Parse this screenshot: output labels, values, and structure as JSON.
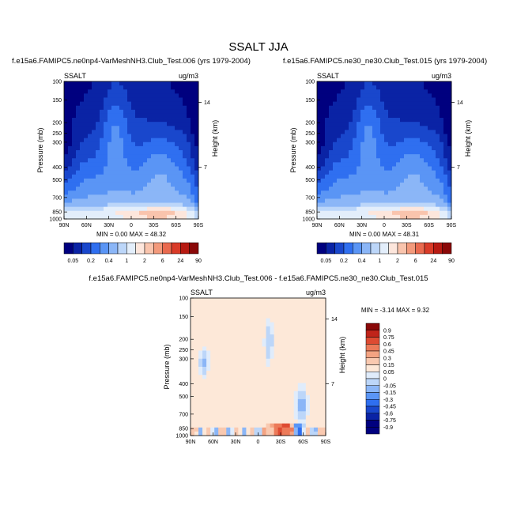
{
  "figure": {
    "title": "SSALT JJA"
  },
  "chart_data": [
    {
      "type": "heatmap",
      "title": "f.e15a6.FAMIPC5.ne0np4-VarMeshNH3.Club_Test.006 (yrs 1979-2004)",
      "left_label": "SSALT",
      "right_label": "ug/m3",
      "xlabel": "",
      "ylabel": "Pressure (mb)",
      "right_axis_label": "Height (km)",
      "x_ticks": [
        "90N",
        "60N",
        "30N",
        "0",
        "30S",
        "60S",
        "90S"
      ],
      "y_ticks": [
        "100",
        "150",
        "200",
        "250",
        "300",
        "400",
        "500",
        "700",
        "850",
        "1000"
      ],
      "right_ticks": [
        "14",
        "7"
      ],
      "stats": "MIN =  0.00  MAX =  48.32",
      "min": 0.0,
      "max": 48.32,
      "colorbar_levels": [
        "0.05",
        "0.2",
        "0.4",
        "1",
        "2",
        "6",
        "24",
        "90"
      ]
    },
    {
      "type": "heatmap",
      "title": "f.e15a6.FAMIPC5.ne30_ne30.Club_Test.015 (yrs 1979-2004)",
      "left_label": "SSALT",
      "right_label": "ug/m3",
      "xlabel": "",
      "ylabel": "Pressure (mb)",
      "right_axis_label": "Height (km)",
      "x_ticks": [
        "90N",
        "60N",
        "30N",
        "0",
        "30S",
        "60S",
        "90S"
      ],
      "y_ticks": [
        "100",
        "150",
        "200",
        "250",
        "300",
        "400",
        "500",
        "700",
        "850",
        "1000"
      ],
      "right_ticks": [
        "14",
        "7"
      ],
      "stats": "MIN =  0.00  MAX =  48.31",
      "min": 0.0,
      "max": 48.31,
      "colorbar_levels": [
        "0.05",
        "0.2",
        "0.4",
        "1",
        "2",
        "6",
        "24",
        "90"
      ]
    },
    {
      "type": "heatmap",
      "title": "f.e15a6.FAMIPC5.ne0np4-VarMeshNH3.Club_Test.006 - f.e15a6.FAMIPC5.ne30_ne30.Club_Test.015",
      "left_label": "SSALT",
      "right_label": "ug/m3",
      "xlabel": "",
      "ylabel": "Pressure (mb)",
      "right_axis_label": "Height (km)",
      "x_ticks": [
        "90N",
        "60N",
        "30N",
        "0",
        "30S",
        "60S",
        "90S"
      ],
      "y_ticks": [
        "100",
        "150",
        "200",
        "250",
        "300",
        "400",
        "500",
        "700",
        "850",
        "1000"
      ],
      "right_ticks": [
        "14",
        "7"
      ],
      "stats": "MIN =  -3.14  MAX =   9.32",
      "min": -3.14,
      "max": 9.32,
      "colorbar_levels": [
        "0.9",
        "0.75",
        "0.6",
        "0.45",
        "0.3",
        "0.15",
        "0.05",
        "0",
        "-0.05",
        "-0.15",
        "-0.3",
        "-0.45",
        "-0.6",
        "-0.75",
        "-0.9"
      ]
    }
  ],
  "colors": {
    "abs_scale": [
      "#00007f",
      "#0a23a5",
      "#1947cc",
      "#2f6ff0",
      "#5a95f5",
      "#8bb6f7",
      "#bcd6f9",
      "#e3eefb",
      "#fde6dc",
      "#f9c4ad",
      "#f39a7c",
      "#e96a4f",
      "#d93b28",
      "#b71a12",
      "#8a0808"
    ],
    "diff_scale": [
      "#00007f",
      "#0a23a5",
      "#1947cc",
      "#2f6ff0",
      "#5a95f5",
      "#8bb6f7",
      "#bcd6f9",
      "#e0ecfb",
      "#fde8d8",
      "#f9c9b0",
      "#f4a382",
      "#ec7a59",
      "#de4b32",
      "#c0241a",
      "#8a0808"
    ],
    "diff_background": "#fde8d8"
  }
}
